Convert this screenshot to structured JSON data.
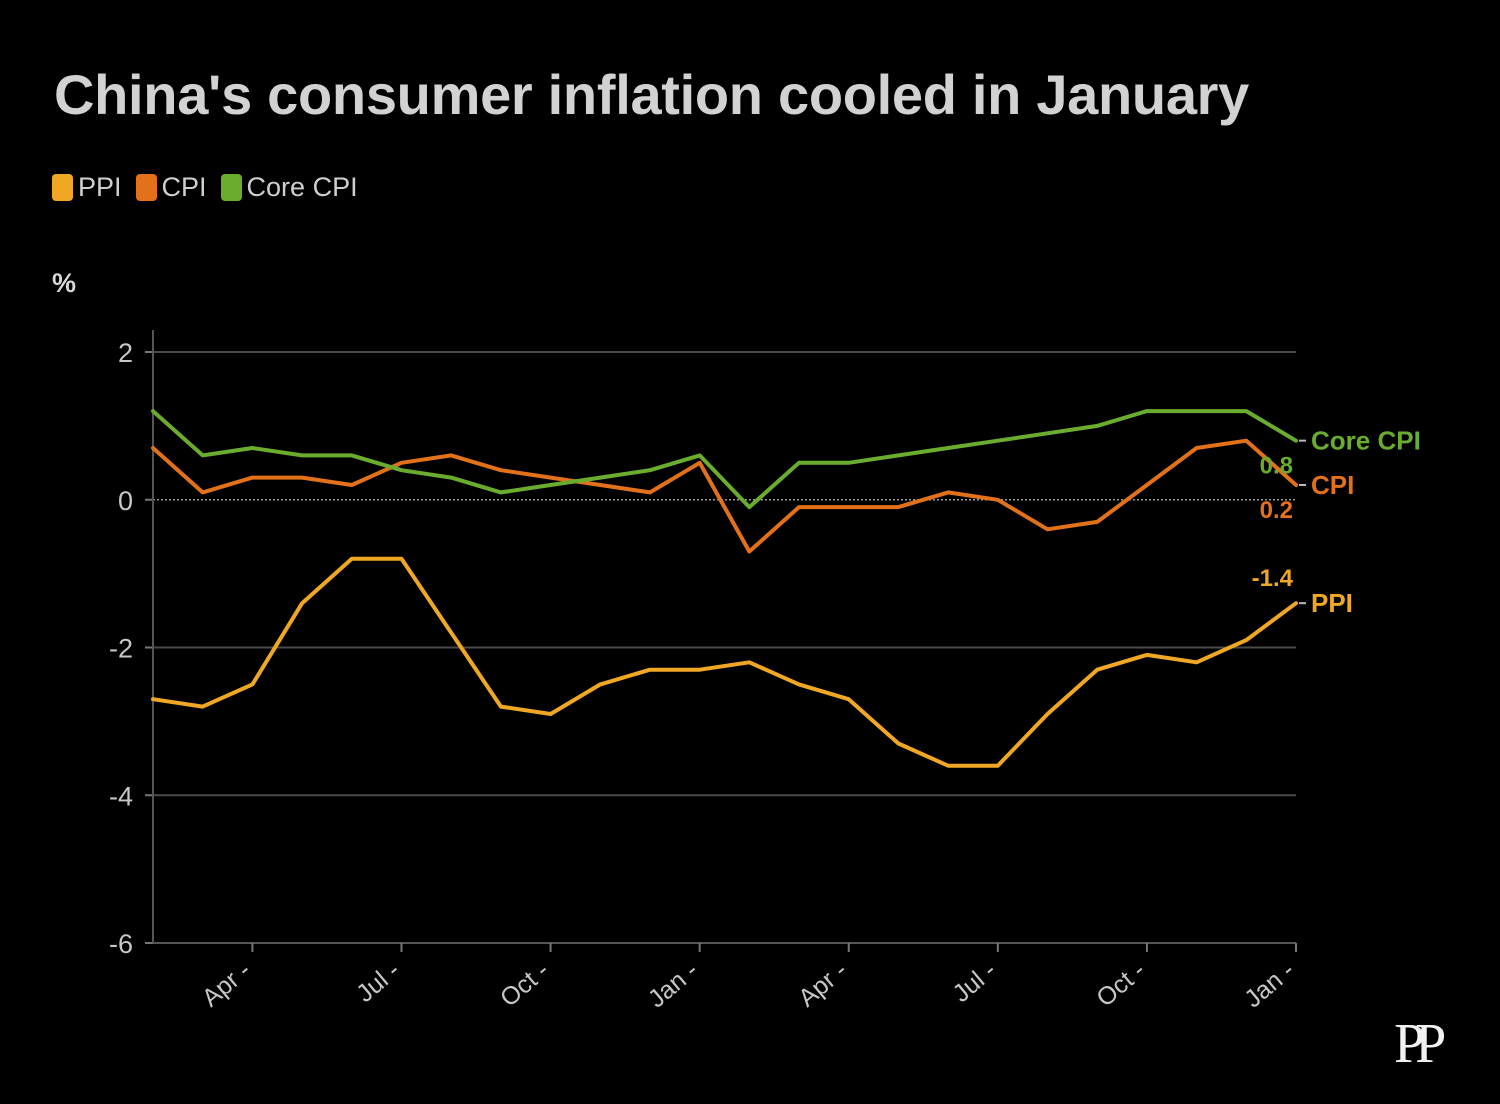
{
  "title": "China's consumer inflation cooled in January",
  "unit_label": "%",
  "logo_text": "PP",
  "legend": [
    {
      "name": "PPI",
      "color": "#f0a824"
    },
    {
      "name": "CPI",
      "color": "#e2711a"
    },
    {
      "name": "Core CPI",
      "color": "#6aad2e"
    }
  ],
  "chart_data": {
    "type": "line",
    "x": [
      "Feb 2023",
      "Mar 2023",
      "Apr 2023",
      "May 2023",
      "Jun 2023",
      "Jul 2023",
      "Aug 2023",
      "Sep 2023",
      "Oct 2023",
      "Nov 2023",
      "Dec 2023",
      "Jan 2024",
      "Feb 2024",
      "Mar 2024",
      "Apr 2024",
      "May 2024",
      "Jun 2024",
      "Jul 2024",
      "Aug 2024",
      "Sep 2024",
      "Oct 2024",
      "Nov 2024",
      "Dec 2024",
      "Jan 2025"
    ],
    "x_tick_labels": [
      "Apr",
      "Jul",
      "Oct",
      "Jan",
      "Apr",
      "Jul",
      "Oct",
      "Jan"
    ],
    "x_tick_positions": [
      "Apr 2023",
      "Jul 2023",
      "Oct 2023",
      "Jan 2024",
      "Apr 2024",
      "Jul 2024",
      "Oct 2024",
      "Jan 2025"
    ],
    "y_ticks": [
      2,
      0,
      -2,
      -4,
      -6
    ],
    "ylim": [
      -6,
      2
    ],
    "series": [
      {
        "name": "PPI",
        "color": "#f0a824",
        "values": [
          -2.7,
          -2.8,
          -2.5,
          -1.4,
          -0.8,
          -0.8,
          -1.8,
          -2.8,
          -2.9,
          -2.5,
          -2.3,
          -2.3,
          -2.2,
          -2.5,
          -2.7,
          -3.3,
          -3.6,
          -3.6,
          -2.9,
          -2.3,
          -2.1,
          -2.2,
          -1.9,
          -1.4
        ],
        "end_value_label": "-1.4"
      },
      {
        "name": "CPI",
        "color": "#e2711a",
        "values": [
          0.7,
          0.1,
          0.3,
          0.3,
          0.2,
          0.5,
          0.6,
          0.4,
          0.3,
          0.2,
          0.1,
          0.5,
          -0.7,
          -0.1,
          -0.1,
          -0.1,
          0.1,
          0.0,
          -0.4,
          -0.3,
          0.2,
          0.7,
          0.8,
          0.2
        ],
        "end_value_label": "0.2"
      },
      {
        "name": "Core CPI",
        "color": "#6aad2e",
        "values": [
          1.2,
          0.6,
          0.7,
          0.6,
          0.6,
          0.4,
          0.3,
          0.1,
          0.2,
          0.3,
          0.4,
          0.6,
          -0.1,
          0.5,
          0.5,
          0.6,
          0.7,
          0.8,
          0.9,
          1.0,
          1.2,
          1.2,
          1.2,
          0.8
        ],
        "end_value_label": "0.8"
      }
    ],
    "grid": true,
    "legend_placement": "top-left"
  }
}
